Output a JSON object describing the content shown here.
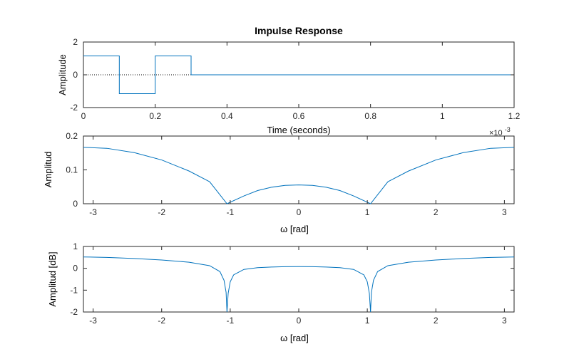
{
  "colors": {
    "line": "#0072BD",
    "axis": "#262626",
    "text": "#000000",
    "background": "#ffffff"
  },
  "chart_data": [
    {
      "type": "line",
      "title": "Impulse Response",
      "xlabel": "Time (seconds)",
      "ylabel": "Amplitude",
      "xlim": [
        0,
        1.2
      ],
      "ylim": [
        -2,
        2
      ],
      "xticks": [
        0,
        0.2,
        0.4,
        0.6,
        0.8,
        1,
        1.2
      ],
      "xtick_labels": [
        "0",
        "0.2",
        "0.4",
        "0.6",
        "0.8",
        "1",
        "1.2"
      ],
      "yticks": [
        -2,
        0,
        2
      ],
      "ytick_labels": [
        "-2",
        "0",
        "2"
      ],
      "step": true,
      "x": [
        0,
        0.1,
        0.2,
        0.3,
        1.2
      ],
      "y": [
        1.15,
        -1.15,
        1.15,
        0,
        0
      ],
      "reference_line_y": 0
    },
    {
      "type": "line",
      "xlabel": "ω [rad]",
      "ylabel": "Amplitud",
      "xlim": [
        -3.1416,
        3.1416
      ],
      "ylim": [
        0,
        0.2
      ],
      "xticks": [
        -3,
        -2,
        -1,
        0,
        1,
        2,
        3
      ],
      "xtick_labels": [
        "-3",
        "-2",
        "-1",
        "0",
        "1",
        "2",
        "3"
      ],
      "yticks": [
        0,
        0.1,
        0.2
      ],
      "ytick_labels": [
        "0",
        "0.1",
        "0.2"
      ],
      "exponent_label": {
        "base": "×10",
        "power": "-3"
      },
      "x": [
        -3.1416,
        -2.8,
        -2.4,
        -2.0,
        -1.6,
        -1.3,
        -1.0472,
        -0.8,
        -0.6,
        -0.4,
        -0.2,
        0,
        0.2,
        0.4,
        0.6,
        0.8,
        1.0472,
        1.3,
        1.6,
        2.0,
        2.4,
        2.8,
        3.1416
      ],
      "y": [
        0.1667,
        0.1638,
        0.151,
        0.1294,
        0.0966,
        0.065,
        0.0,
        0.0231,
        0.039,
        0.0487,
        0.0542,
        0.0556,
        0.0542,
        0.0487,
        0.039,
        0.0231,
        0.0,
        0.065,
        0.0966,
        0.1294,
        0.151,
        0.1638,
        0.1667
      ]
    },
    {
      "type": "line",
      "xlabel": "ω [rad]",
      "ylabel": "Amplitud [dB]",
      "xlim": [
        -3.1416,
        3.1416
      ],
      "ylim": [
        -2,
        1
      ],
      "xticks": [
        -3,
        -2,
        -1,
        0,
        1,
        2,
        3
      ],
      "xtick_labels": [
        "-3",
        "-2",
        "-1",
        "0",
        "1",
        "2",
        "3"
      ],
      "yticks": [
        -2,
        -1,
        0,
        1
      ],
      "ytick_labels": [
        "-2",
        "-1",
        "0",
        "1"
      ],
      "x": [
        -3.1416,
        -2.8,
        -2.4,
        -2.0,
        -1.6,
        -1.3,
        -1.15,
        -1.09,
        -1.06,
        -1.0472,
        -1.03,
        -1.0,
        -0.95,
        -0.8,
        -0.6,
        -0.4,
        -0.2,
        0,
        0.2,
        0.4,
        0.6,
        0.8,
        0.95,
        1.0,
        1.03,
        1.0472,
        1.06,
        1.09,
        1.15,
        1.3,
        1.6,
        2.0,
        2.4,
        2.8,
        3.1416
      ],
      "y": [
        0.52,
        0.5,
        0.45,
        0.38,
        0.28,
        0.12,
        -0.15,
        -0.55,
        -1.1,
        -2.0,
        -1.15,
        -0.62,
        -0.3,
        -0.05,
        0.03,
        0.06,
        0.075,
        0.08,
        0.075,
        0.06,
        0.03,
        -0.05,
        -0.3,
        -0.62,
        -1.15,
        -2.0,
        -1.1,
        -0.55,
        -0.15,
        0.12,
        0.28,
        0.38,
        0.45,
        0.5,
        0.52
      ]
    }
  ]
}
